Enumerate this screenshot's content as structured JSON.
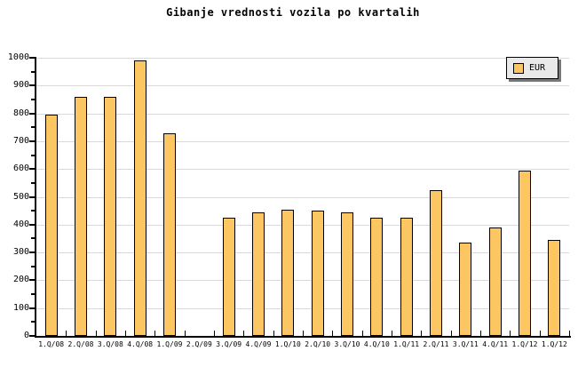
{
  "title": "Gibanje vrednosti vozila po kvartalih",
  "legend": {
    "label": "EUR",
    "position": "top-right"
  },
  "colors": {
    "background": "#ffffff",
    "bar_fill": "#fcc662",
    "bar_border": "#000000",
    "gridline": "#d9d9d9",
    "axis": "#000000",
    "legend_bg": "#e9e9e9",
    "legend_shadow": "#777777",
    "text": "#000000"
  },
  "y_axis": {
    "min": 0,
    "max": 1000,
    "major_step": 100,
    "minor_step": 50,
    "tick_labels": [
      "0",
      "100",
      "200",
      "300",
      "400",
      "500",
      "600",
      "700",
      "800",
      "900",
      "1000"
    ]
  },
  "chart_data": {
    "type": "bar",
    "title": "Gibanje vrednosti vozila po kvartalih",
    "categories": [
      "1.Q/08",
      "2.Q/08",
      "3.Q/08",
      "4.Q/08",
      "1.Q/09",
      "2.Q/09",
      "3.Q/09",
      "4.Q/09",
      "1.Q/10",
      "2.Q/10",
      "3.Q/10",
      "4.Q/10",
      "1.Q/11",
      "2.Q/11",
      "3.Q/11",
      "4.Q/11",
      "1.Q/12",
      "1.Q/12"
    ],
    "series": [
      {
        "name": "EUR",
        "values": [
          795,
          860,
          860,
          990,
          730,
          0,
          425,
          445,
          455,
          450,
          445,
          425,
          425,
          525,
          335,
          390,
          595,
          345
        ]
      }
    ],
    "xlabel": "",
    "ylabel": "",
    "ylim": [
      0,
      1000
    ],
    "grid": "horizontal-every-100",
    "missing_bars": [
      "2.Q/09"
    ],
    "legend_position": "top-right"
  }
}
